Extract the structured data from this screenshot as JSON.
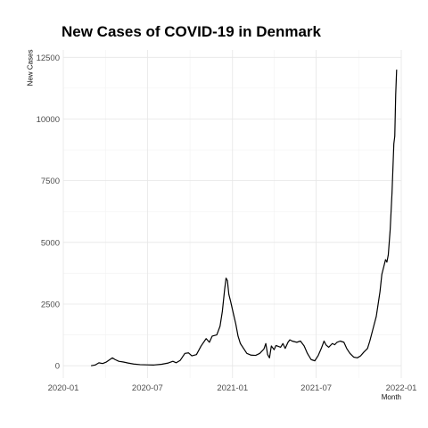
{
  "chart_data": {
    "type": "line",
    "title": "New Cases of COVID-19 in Denmark",
    "xlabel": "Month",
    "ylabel": "New Cases",
    "x_ticks": [
      "2020-01",
      "2020-07",
      "2021-01",
      "2021-07",
      "2022-01"
    ],
    "y_ticks": [
      "0",
      "2500",
      "5000",
      "7500",
      "10000",
      "12500"
    ],
    "xlim": [
      "2020-01-01",
      "2022-01-01"
    ],
    "ylim": [
      -500,
      12800
    ],
    "grid": true,
    "legend": "none",
    "series": [
      {
        "color": "#000000",
        "points": [
          [
            "2020-03-01",
            0
          ],
          [
            "2020-03-10",
            30
          ],
          [
            "2020-03-18",
            120
          ],
          [
            "2020-03-26",
            90
          ],
          [
            "2020-04-03",
            150
          ],
          [
            "2020-04-10",
            240
          ],
          [
            "2020-04-16",
            320
          ],
          [
            "2020-04-22",
            250
          ],
          [
            "2020-04-30",
            180
          ],
          [
            "2020-05-10",
            150
          ],
          [
            "2020-05-20",
            110
          ],
          [
            "2020-06-01",
            70
          ],
          [
            "2020-06-15",
            45
          ],
          [
            "2020-07-01",
            35
          ],
          [
            "2020-07-15",
            30
          ],
          [
            "2020-08-01",
            60
          ],
          [
            "2020-08-15",
            110
          ],
          [
            "2020-08-25",
            180
          ],
          [
            "2020-09-01",
            120
          ],
          [
            "2020-09-10",
            220
          ],
          [
            "2020-09-20",
            500
          ],
          [
            "2020-09-28",
            520
          ],
          [
            "2020-10-05",
            400
          ],
          [
            "2020-10-15",
            450
          ],
          [
            "2020-10-25",
            800
          ],
          [
            "2020-11-05",
            1100
          ],
          [
            "2020-11-12",
            950
          ],
          [
            "2020-11-18",
            1200
          ],
          [
            "2020-11-28",
            1250
          ],
          [
            "2020-12-05",
            1600
          ],
          [
            "2020-12-10",
            2200
          ],
          [
            "2020-12-15",
            3100
          ],
          [
            "2020-12-18",
            3550
          ],
          [
            "2020-12-21",
            3450
          ],
          [
            "2020-12-24",
            2900
          ],
          [
            "2020-12-28",
            2600
          ],
          [
            "2021-01-03",
            2100
          ],
          [
            "2021-01-08",
            1700
          ],
          [
            "2021-01-13",
            1200
          ],
          [
            "2021-01-18",
            900
          ],
          [
            "2021-01-25",
            700
          ],
          [
            "2021-02-01",
            500
          ],
          [
            "2021-02-10",
            430
          ],
          [
            "2021-02-20",
            420
          ],
          [
            "2021-03-01",
            500
          ],
          [
            "2021-03-10",
            680
          ],
          [
            "2021-03-14",
            900
          ],
          [
            "2021-03-18",
            450
          ],
          [
            "2021-03-22",
            320
          ],
          [
            "2021-03-26",
            800
          ],
          [
            "2021-04-01",
            650
          ],
          [
            "2021-04-05",
            820
          ],
          [
            "2021-04-15",
            750
          ],
          [
            "2021-04-20",
            900
          ],
          [
            "2021-04-25",
            700
          ],
          [
            "2021-05-01",
            950
          ],
          [
            "2021-05-05",
            1050
          ],
          [
            "2021-05-10",
            1000
          ],
          [
            "2021-05-20",
            950
          ],
          [
            "2021-05-28",
            1000
          ],
          [
            "2021-06-05",
            800
          ],
          [
            "2021-06-12",
            500
          ],
          [
            "2021-06-20",
            250
          ],
          [
            "2021-06-28",
            200
          ],
          [
            "2021-07-05",
            400
          ],
          [
            "2021-07-12",
            700
          ],
          [
            "2021-07-18",
            1000
          ],
          [
            "2021-07-22",
            850
          ],
          [
            "2021-07-28",
            750
          ],
          [
            "2021-08-05",
            900
          ],
          [
            "2021-08-10",
            850
          ],
          [
            "2021-08-15",
            950
          ],
          [
            "2021-08-22",
            1000
          ],
          [
            "2021-08-30",
            950
          ],
          [
            "2021-09-05",
            700
          ],
          [
            "2021-09-12",
            500
          ],
          [
            "2021-09-20",
            350
          ],
          [
            "2021-09-28",
            320
          ],
          [
            "2021-10-05",
            400
          ],
          [
            "2021-10-12",
            550
          ],
          [
            "2021-10-20",
            700
          ],
          [
            "2021-10-25",
            1000
          ],
          [
            "2021-11-01",
            1500
          ],
          [
            "2021-11-08",
            2000
          ],
          [
            "2021-11-12",
            2500
          ],
          [
            "2021-11-16",
            3000
          ],
          [
            "2021-11-20",
            3700
          ],
          [
            "2021-11-24",
            4000
          ],
          [
            "2021-11-28",
            4300
          ],
          [
            "2021-12-01",
            4200
          ],
          [
            "2021-12-04",
            4500
          ],
          [
            "2021-12-08",
            5500
          ],
          [
            "2021-12-12",
            7000
          ],
          [
            "2021-12-16",
            9000
          ],
          [
            "2021-12-18",
            9300
          ],
          [
            "2021-12-20",
            11000
          ],
          [
            "2021-12-22",
            12000
          ]
        ]
      }
    ]
  }
}
